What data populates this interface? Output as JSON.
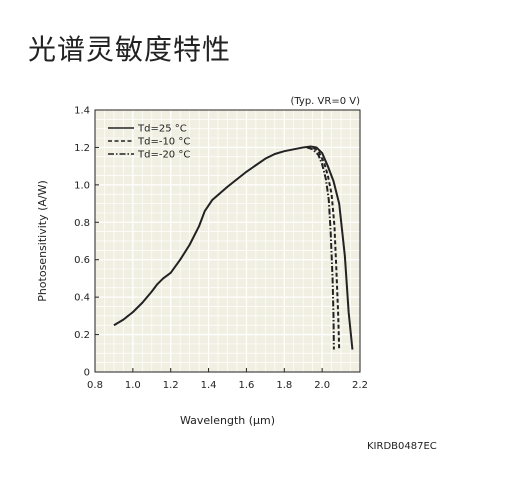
{
  "page": {
    "title": "光谱灵敏度特性",
    "code": "KIRDB0487EC"
  },
  "chart_data": {
    "type": "line",
    "xlabel": "Wavelength (μm)",
    "ylabel": "Photosensitivity (A/W)",
    "condition": "(Typ. VR=0 V)",
    "xlim": [
      0.8,
      2.2
    ],
    "ylim": [
      0,
      1.4
    ],
    "xticks": [
      "0.8",
      "1.0",
      "1.2",
      "1.4",
      "1.6",
      "1.8",
      "2.0",
      "2.2"
    ],
    "yticks": [
      "0",
      "0.2",
      "0.4",
      "0.6",
      "0.8",
      "1.0",
      "1.2",
      "1.4"
    ],
    "grid": true,
    "legend_position": "top-left",
    "colors": {
      "line": "#222222",
      "plot_bg": "#f1efe2",
      "grid": "#ffffff"
    },
    "series": [
      {
        "name": "Td=25 °C",
        "dash": "solid",
        "x": [
          0.9,
          0.95,
          1.0,
          1.05,
          1.1,
          1.13,
          1.16,
          1.2,
          1.25,
          1.3,
          1.35,
          1.38,
          1.42,
          1.5,
          1.6,
          1.7,
          1.75,
          1.8,
          1.85,
          1.9,
          1.94,
          1.97,
          2.0,
          2.03,
          2.06,
          2.09,
          2.12,
          2.14,
          2.16
        ],
        "y": [
          0.25,
          0.28,
          0.32,
          0.37,
          0.43,
          0.47,
          0.5,
          0.53,
          0.6,
          0.68,
          0.78,
          0.86,
          0.92,
          0.99,
          1.07,
          1.14,
          1.165,
          1.18,
          1.19,
          1.2,
          1.205,
          1.2,
          1.17,
          1.1,
          1.02,
          0.9,
          0.62,
          0.32,
          0.12
        ]
      },
      {
        "name": "Td=-10 °C",
        "dash": "dashed",
        "x": [
          1.92,
          1.95,
          1.98,
          2.01,
          2.03,
          2.05,
          2.065,
          2.075,
          2.085,
          2.09
        ],
        "y": [
          1.2,
          1.2,
          1.18,
          1.12,
          1.05,
          0.95,
          0.78,
          0.55,
          0.3,
          0.12
        ]
      },
      {
        "name": "Td=-20 °C",
        "dash": "dashdot",
        "x": [
          1.92,
          1.95,
          1.98,
          2.0,
          2.02,
          2.035,
          2.045,
          2.055,
          2.06,
          2.062
        ],
        "y": [
          1.2,
          1.19,
          1.16,
          1.11,
          1.03,
          0.92,
          0.75,
          0.5,
          0.3,
          0.12
        ]
      }
    ]
  }
}
